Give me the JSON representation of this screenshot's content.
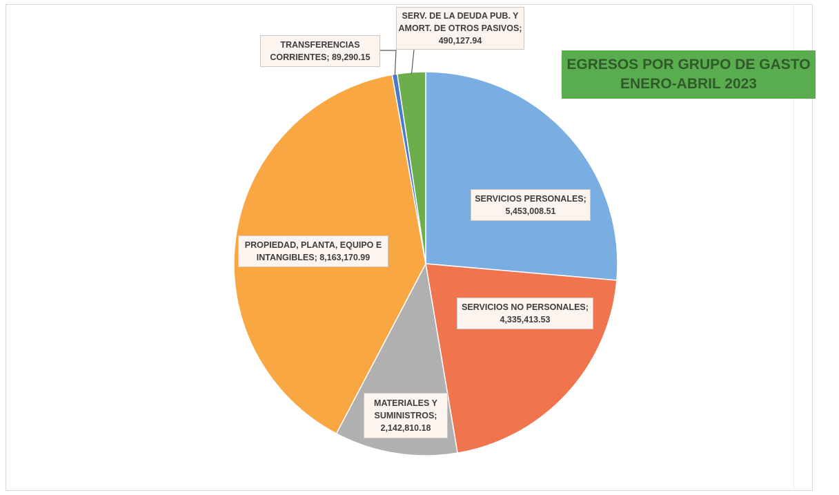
{
  "chart_data": {
    "type": "pie",
    "title_lines": [
      "EGRESOS POR GRUPO DE GASTO",
      "ENERO-ABRIL 2023"
    ],
    "slices": [
      {
        "label_lines": [
          "SERVICIOS PERSONALES;",
          "5,453,008.51"
        ],
        "category": "SERVICIOS PERSONALES",
        "value": 5453008.51,
        "color": "#7aaee3"
      },
      {
        "label_lines": [
          "SERVICIOS NO PERSONALES;",
          "4,335,413.53"
        ],
        "category": "SERVICIOS NO PERSONALES",
        "value": 4335413.53,
        "color": "#f0744e"
      },
      {
        "label_lines": [
          "MATERIALES Y",
          "SUMINISTROS;",
          "2,142,810.18"
        ],
        "category": "MATERIALES Y SUMINISTROS",
        "value": 2142810.18,
        "color": "#b0b0b0"
      },
      {
        "label_lines": [
          "PROPIEDAD, PLANTA, EQUIPO E",
          "INTANGIBLES; 8,163,170.99"
        ],
        "category": "PROPIEDAD, PLANTA, EQUIPO E INTANGIBLES",
        "value": 8163170.99,
        "color": "#f8a742"
      },
      {
        "label_lines": [
          "TRANSFERENCIAS",
          "CORRIENTES; 89,290.15"
        ],
        "category": "TRANSFERENCIAS CORRIENTES",
        "value": 89290.15,
        "color": "#4b7bc8"
      },
      {
        "label_lines": [
          "SERV. DE LA DEUDA PUB. Y",
          "AMORT. DE OTROS PASIVOS;",
          "490,127.94"
        ],
        "category": "SERV. DE LA DEUDA PUB. Y AMORT. DE OTROS PASIVOS",
        "value": 490127.94,
        "color": "#6cae4c"
      }
    ]
  }
}
